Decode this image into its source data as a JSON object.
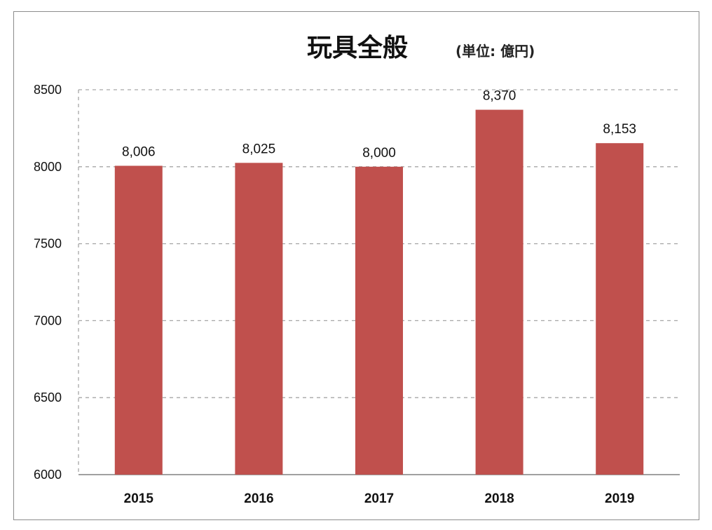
{
  "chart_data": {
    "type": "bar",
    "title": "玩具全般",
    "subtitle": "(単位: 億円)",
    "categories": [
      "2015",
      "2016",
      "2017",
      "2018",
      "2019"
    ],
    "values": [
      8006,
      8025,
      8000,
      8370,
      8153
    ],
    "data_labels": [
      "8,006",
      "8,025",
      "8,000",
      "8,370",
      "8,153"
    ],
    "ylim": [
      6000,
      8500
    ],
    "yticks": [
      6000,
      6500,
      7000,
      7500,
      8000,
      8500
    ],
    "grid": true,
    "grid_style": "dashed",
    "legend": "none",
    "colors": {
      "bar": "#c0504d",
      "grid": "#a6a6a6",
      "axis": "#808080"
    }
  }
}
